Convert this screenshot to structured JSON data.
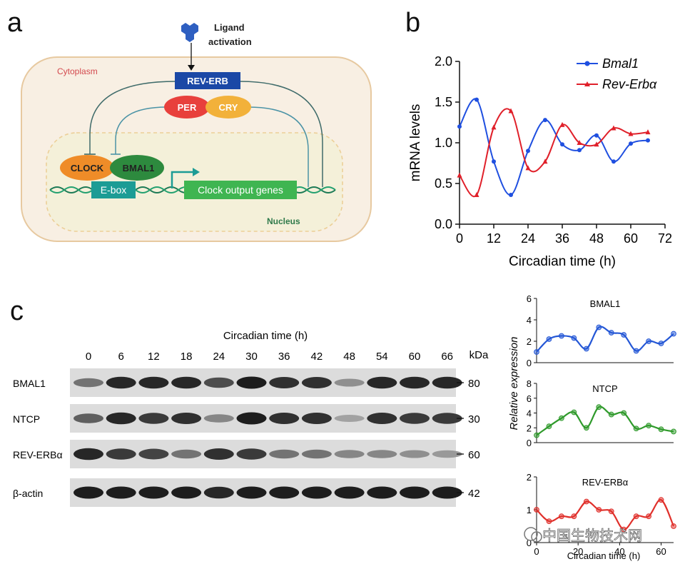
{
  "panels": {
    "a": "a",
    "b": "b",
    "c": "c"
  },
  "diagram": {
    "ligand_line1": "Ligand",
    "ligand_line2": "activation",
    "cytoplasm": "Cytoplasm",
    "nucleus": "Nucleus",
    "rev_erb": "REV-ERB",
    "per": "PER",
    "cry": "CRY",
    "clock": "CLOCK",
    "bmal1": "BMAL1",
    "ebox": "E-box",
    "output_genes": "Clock output genes",
    "colors": {
      "cytoplasm_fill": "#f8efe3",
      "cytoplasm_border": "#e7c9a0",
      "rev_erb_box": "#1b48a6",
      "per": "#e8403c",
      "cry": "#f2b13a",
      "clock": "#ef8c28",
      "bmal1": "#2d8a3e",
      "ebox": "#1c9c95",
      "output_genes": "#3fb551",
      "ligand": "#2e5fc1",
      "dna": "#1c7a55"
    }
  },
  "chart_data": [
    {
      "type": "line",
      "id": "b",
      "xlabel": "Circadian time (h)",
      "ylabel": "mRNA levels",
      "xlim": [
        0,
        72
      ],
      "ylim": [
        0,
        2.0
      ],
      "xticks": [
        "0",
        "12",
        "24",
        "36",
        "48",
        "60",
        "72"
      ],
      "yticks": [
        "0.0",
        "0.5",
        "1.0",
        "1.5",
        "2.0"
      ],
      "legend_position": "top-right",
      "series": [
        {
          "name": "Bmal1",
          "color": "#1f4fe0",
          "marker": "circle",
          "x": [
            0,
            6,
            12,
            18,
            24,
            30,
            36,
            42,
            48,
            54,
            60,
            66
          ],
          "y": [
            1.2,
            1.53,
            0.77,
            0.36,
            0.9,
            1.28,
            0.98,
            0.91,
            1.09,
            0.77,
            0.99,
            1.03
          ]
        },
        {
          "name": "Rev-Erbα",
          "color": "#e0202a",
          "marker": "triangle",
          "x": [
            0,
            6,
            12,
            18,
            24,
            30,
            36,
            42,
            48,
            54,
            60,
            66
          ],
          "y": [
            0.6,
            0.36,
            1.19,
            1.39,
            0.69,
            0.77,
            1.22,
            1.0,
            0.98,
            1.18,
            1.11,
            1.13
          ]
        }
      ]
    },
    {
      "type": "scatter",
      "id": "c-bmal1",
      "title": "BMAL1",
      "color": "#2457d6",
      "xlim": [
        0,
        66
      ],
      "ylim": [
        0,
        6
      ],
      "yticks": [
        "0",
        "2",
        "4",
        "6"
      ],
      "x": [
        0,
        6,
        12,
        18,
        24,
        30,
        36,
        42,
        48,
        54,
        60,
        66
      ],
      "y": [
        1.0,
        2.2,
        2.5,
        2.3,
        1.3,
        3.3,
        2.8,
        2.6,
        1.1,
        2.0,
        1.8,
        2.7
      ]
    },
    {
      "type": "scatter",
      "id": "c-ntcp",
      "title": "NTCP",
      "color": "#2f9a2b",
      "xlim": [
        0,
        66
      ],
      "ylim": [
        0,
        8
      ],
      "yticks": [
        "0",
        "2",
        "4",
        "6",
        "8"
      ],
      "x": [
        0,
        6,
        12,
        18,
        24,
        30,
        36,
        42,
        48,
        54,
        60,
        66
      ],
      "y": [
        1.0,
        2.2,
        3.3,
        4.1,
        2.0,
        4.8,
        3.8,
        4.0,
        1.9,
        2.3,
        1.8,
        1.5
      ]
    },
    {
      "type": "scatter",
      "id": "c-reverb",
      "title": "REV-ERBα",
      "color": "#e0302b",
      "xlim": [
        0,
        66
      ],
      "ylim": [
        0,
        2
      ],
      "yticks": [
        "0",
        "1",
        "2"
      ],
      "xticks": [
        "0",
        "20",
        "40",
        "60"
      ],
      "xlabel": "Circadian time (h)",
      "ylabel": "Relative expression",
      "x": [
        0,
        6,
        12,
        18,
        24,
        30,
        36,
        42,
        48,
        54,
        60,
        66
      ],
      "y": [
        1.0,
        0.65,
        0.8,
        0.8,
        1.25,
        1.0,
        0.95,
        0.4,
        0.8,
        0.8,
        1.3,
        0.5
      ]
    }
  ],
  "blot": {
    "header": "Circadian time (h)",
    "timepoints": [
      "0",
      "6",
      "12",
      "18",
      "24",
      "30",
      "36",
      "42",
      "48",
      "54",
      "60",
      "66"
    ],
    "kda_label": "kDa",
    "rows": [
      {
        "name": "BMAL1",
        "kda": "80",
        "intensity": [
          0.45,
          0.85,
          0.85,
          0.85,
          0.65,
          0.9,
          0.8,
          0.8,
          0.3,
          0.85,
          0.85,
          0.85
        ]
      },
      {
        "name": "NTCP",
        "kda": "30",
        "intensity": [
          0.55,
          0.85,
          0.75,
          0.8,
          0.35,
          0.9,
          0.8,
          0.8,
          0.2,
          0.8,
          0.75,
          0.75
        ]
      },
      {
        "name": "REV-ERBα",
        "kda": "60",
        "intensity": [
          0.85,
          0.75,
          0.7,
          0.45,
          0.8,
          0.75,
          0.45,
          0.45,
          0.35,
          0.35,
          0.3,
          0.25
        ]
      },
      {
        "name": "β-actin",
        "kda": "42",
        "intensity": [
          0.9,
          0.9,
          0.9,
          0.9,
          0.85,
          0.9,
          0.9,
          0.9,
          0.9,
          0.9,
          0.9,
          0.9
        ]
      }
    ]
  },
  "watermark": "中国生物技术网"
}
